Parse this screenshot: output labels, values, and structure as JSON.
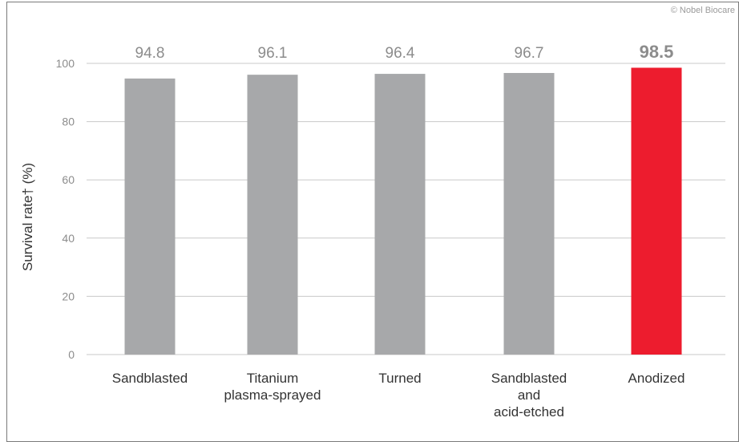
{
  "copyright": "© Nobel Biocare",
  "colors": {
    "bar_default": "#a7a8aa",
    "bar_highlight": "#ed1c2e",
    "value_default": "#8c8c8c",
    "value_highlight": "#ed1c2e",
    "grid": "#c9c9c9"
  },
  "chart_data": {
    "type": "bar",
    "ylabel": "Survival rate† (%)",
    "xlabel": "",
    "ylim": [
      0,
      100
    ],
    "yticks": [
      0,
      20,
      40,
      60,
      80,
      100
    ],
    "grid": true,
    "categories": [
      [
        "Sandblasted"
      ],
      [
        "Titanium",
        "plasma-sprayed"
      ],
      [
        "Turned"
      ],
      [
        "Sandblasted",
        "and",
        "acid-etched"
      ],
      [
        "Anodized"
      ]
    ],
    "values": [
      94.8,
      96.1,
      96.4,
      96.7,
      98.5
    ],
    "value_labels": [
      "94.8",
      "96.1",
      "96.4",
      "96.7",
      "98.5"
    ],
    "highlight_index": 4
  }
}
